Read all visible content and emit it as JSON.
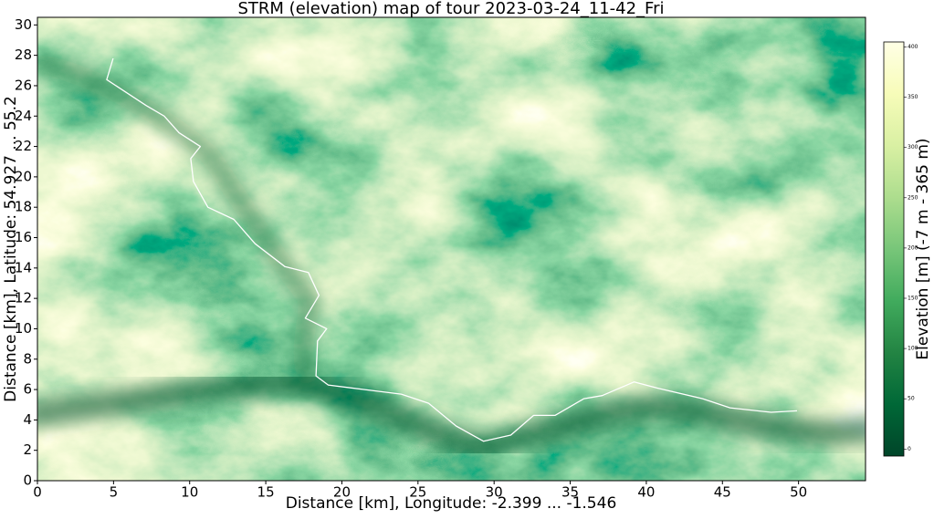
{
  "chart_data": {
    "type": "elevation-map",
    "title": "STRM (elevation) map of tour 2023-03-24_11-42_Fri",
    "x_label": "Distance [km], Longitude: -2.399 ... -1.546",
    "y_label": "Distance [km], Latitude: 54.927  ... 55.2",
    "xlim": [
      0,
      54.4
    ],
    "ylim": [
      0,
      30.5
    ],
    "xticks": [
      0,
      5,
      10,
      15,
      20,
      25,
      30,
      35,
      40,
      45,
      50
    ],
    "yticks": [
      0,
      2,
      4,
      6,
      8,
      10,
      12,
      14,
      16,
      18,
      20,
      22,
      24,
      26,
      28,
      30
    ],
    "colorbar": {
      "label": "Elevation [m] (-7 m - 365 m)",
      "lim": [
        -7,
        405
      ],
      "ticks": [
        0,
        50,
        100,
        150,
        200,
        250,
        300,
        350,
        400
      ],
      "colormap": [
        "#004529",
        "#006837",
        "#238443",
        "#41ab5d",
        "#78c679",
        "#addd8e",
        "#d9f0a3",
        "#f7fcb9",
        "#ffffe5"
      ]
    },
    "series": [
      {
        "color": "#ffffff",
        "x": [
          4.97,
          4.55,
          7.13,
          8.33,
          9.3,
          10.7,
          10.07,
          10.25,
          11.2,
          12.9,
          14.3,
          16.25,
          17.8,
          18.5,
          17.6,
          19.0,
          18.4,
          18.3,
          19.1,
          21.5,
          23.9,
          25.7,
          27.5,
          29.3,
          31.1,
          32.6,
          34.0,
          35.9,
          37.1,
          39.2,
          40.7,
          43.7,
          45.5,
          48.2,
          49.9
        ],
        "y": [
          27.8,
          26.4,
          24.7,
          24.0,
          22.9,
          22.0,
          21.2,
          19.7,
          18.0,
          17.2,
          15.6,
          14.1,
          13.7,
          12.2,
          10.7,
          10.0,
          9.2,
          6.9,
          6.3,
          6.0,
          5.7,
          5.1,
          3.6,
          2.6,
          3.0,
          4.3,
          4.3,
          5.4,
          5.6,
          6.5,
          6.1,
          5.4,
          4.8,
          4.5,
          4.6
        ]
      }
    ]
  }
}
